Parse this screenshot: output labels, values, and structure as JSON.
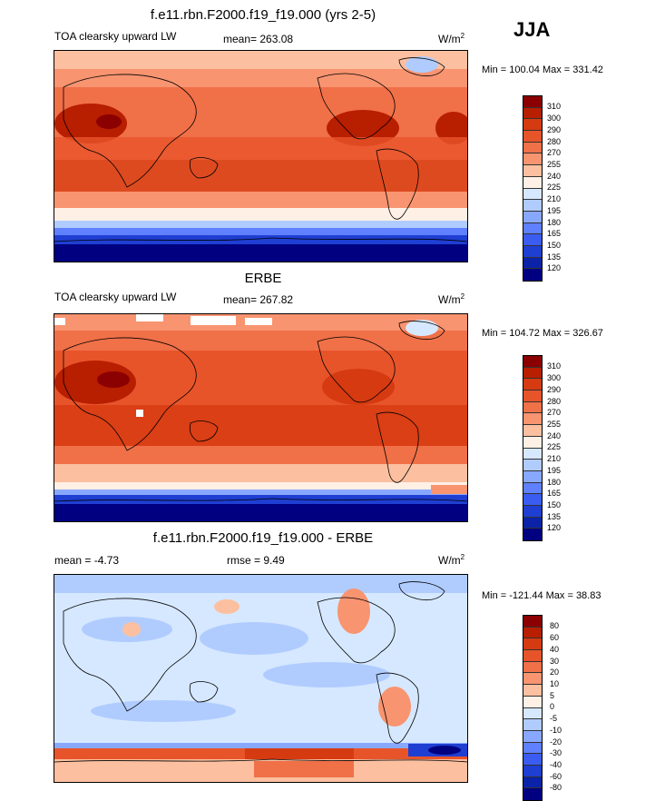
{
  "season": "JJA",
  "panels": [
    {
      "title": "f.e11.rbn.F2000.f19_f19.000 (yrs 2-5)",
      "left_label": "TOA clearsky upward LW",
      "mean_label": "mean= 263.08",
      "units": "W/m",
      "units_exp": "2",
      "minmax": "Min = 100.04 Max = 331.42",
      "ticks": [
        "310",
        "300",
        "290",
        "280",
        "270",
        "255",
        "240",
        "225",
        "210",
        "195",
        "180",
        "165",
        "150",
        "135",
        "120"
      ],
      "colors": [
        "#8b0000",
        "#b81e00",
        "#d63a10",
        "#e8542a",
        "#f07048",
        "#f89470",
        "#fcc0a0",
        "#fff0e6",
        "#d6e8ff",
        "#b0ccff",
        "#88a8ff",
        "#5f80ff",
        "#3a5cf0",
        "#1f3ed2",
        "#0a23a8",
        "#000080"
      ]
    },
    {
      "title": "ERBE",
      "left_label": "TOA clearsky upward LW",
      "mean_label": "mean= 267.82",
      "units": "W/m",
      "units_exp": "2",
      "minmax": "Min = 104.72 Max = 326.67",
      "ticks": [
        "310",
        "300",
        "290",
        "280",
        "270",
        "255",
        "240",
        "225",
        "210",
        "195",
        "180",
        "165",
        "150",
        "135",
        "120"
      ],
      "colors": [
        "#8b0000",
        "#b81e00",
        "#d63a10",
        "#e8542a",
        "#f07048",
        "#f89470",
        "#fcc0a0",
        "#fff0e6",
        "#d6e8ff",
        "#b0ccff",
        "#88a8ff",
        "#5f80ff",
        "#3a5cf0",
        "#1f3ed2",
        "#0a23a8",
        "#000080"
      ]
    },
    {
      "title": "f.e11.rbn.F2000.f19_f19.000 - ERBE",
      "left_label": "mean =  -4.73",
      "mean_label": "rmse =   9.49",
      "units": "W/m",
      "units_exp": "2",
      "minmax": "Min = -121.44 Max =  38.83",
      "ticks": [
        "80",
        "60",
        "40",
        "30",
        "20",
        "10",
        "5",
        "0",
        "-5",
        "-10",
        "-20",
        "-30",
        "-40",
        "-60",
        "-80"
      ],
      "colors": [
        "#8b0000",
        "#b81e00",
        "#d63a10",
        "#e8542a",
        "#f07048",
        "#f89470",
        "#fcc0a0",
        "#fff0e6",
        "#d6e8ff",
        "#b0ccff",
        "#88a8ff",
        "#5f80ff",
        "#3a5cf0",
        "#1f3ed2",
        "#0a23a8",
        "#000080"
      ]
    }
  ]
}
